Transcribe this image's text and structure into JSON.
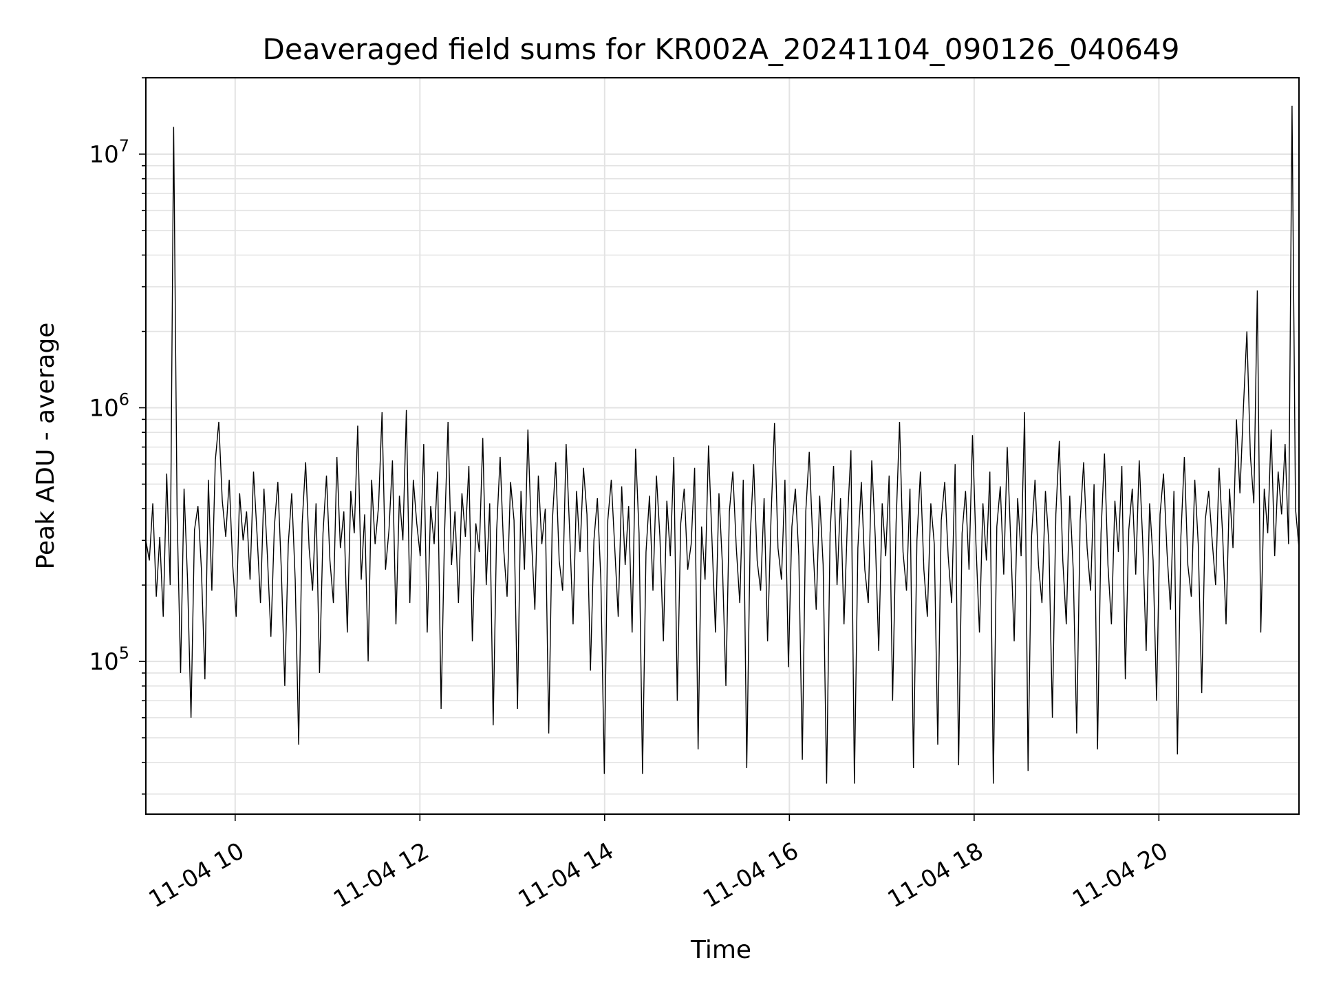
{
  "chart_data": {
    "type": "line",
    "title": "Deaveraged field sums for KR002A_20241104_090126_040649",
    "xlabel": "Time",
    "ylabel": "Peak ADU - average",
    "y_scale": "log",
    "ylim": [
      25000,
      20000000
    ],
    "xlim": [
      "2024-11-04 09:02",
      "2024-11-04 21:31"
    ],
    "grid": true,
    "line_color": "#000000",
    "x_tick_labels": [
      {
        "time": "2024-11-04 10:00",
        "label": "11-04 10"
      },
      {
        "time": "2024-11-04 12:00",
        "label": "11-04 12"
      },
      {
        "time": "2024-11-04 14:00",
        "label": "11-04 14"
      },
      {
        "time": "2024-11-04 16:00",
        "label": "11-04 16"
      },
      {
        "time": "2024-11-04 18:00",
        "label": "11-04 18"
      },
      {
        "time": "2024-11-04 20:00",
        "label": "11-04 20"
      }
    ],
    "y_tick_labels": [
      {
        "value": 100000,
        "base": "10",
        "exp": "5"
      },
      {
        "value": 1000000,
        "base": "10",
        "exp": "6"
      },
      {
        "value": 10000000,
        "base": "10",
        "exp": "7"
      }
    ],
    "series": [
      {
        "x_start": "2024-11-04 09:02",
        "x_end": "2024-11-04 21:31",
        "values": [
          300000,
          250000,
          420000,
          180000,
          310000,
          150000,
          550000,
          200000,
          12800000,
          380000,
          90000,
          480000,
          210000,
          60000,
          330000,
          410000,
          230000,
          85000,
          520000,
          190000,
          620000,
          880000,
          430000,
          310000,
          520000,
          240000,
          150000,
          460000,
          300000,
          390000,
          210000,
          560000,
          320000,
          170000,
          480000,
          260000,
          125000,
          340000,
          510000,
          230000,
          80000,
          290000,
          460000,
          210000,
          47000,
          350000,
          610000,
          280000,
          190000,
          420000,
          90000,
          320000,
          540000,
          250000,
          170000,
          640000,
          280000,
          390000,
          130000,
          470000,
          320000,
          850000,
          210000,
          380000,
          100000,
          520000,
          290000,
          410000,
          960000,
          230000,
          330000,
          620000,
          140000,
          450000,
          300000,
          980000,
          170000,
          520000,
          350000,
          260000,
          720000,
          130000,
          410000,
          290000,
          560000,
          65000,
          320000,
          880000,
          240000,
          390000,
          170000,
          460000,
          310000,
          590000,
          120000,
          350000,
          270000,
          760000,
          200000,
          420000,
          56000,
          330000,
          640000,
          280000,
          180000,
          510000,
          360000,
          65000,
          470000,
          230000,
          820000,
          310000,
          160000,
          540000,
          290000,
          400000,
          52000,
          350000,
          610000,
          250000,
          190000,
          720000,
          330000,
          140000,
          470000,
          270000,
          580000,
          380000,
          92000,
          300000,
          440000,
          210000,
          36000,
          360000,
          520000,
          280000,
          150000,
          490000,
          240000,
          410000,
          130000,
          690000,
          320000,
          36000,
          270000,
          450000,
          190000,
          540000,
          310000,
          120000,
          430000,
          260000,
          640000,
          70000,
          350000,
          480000,
          230000,
          290000,
          580000,
          45000,
          340000,
          210000,
          710000,
          300000,
          130000,
          460000,
          240000,
          80000,
          390000,
          560000,
          280000,
          170000,
          520000,
          38000,
          310000,
          600000,
          250000,
          190000,
          440000,
          120000,
          370000,
          870000,
          280000,
          210000,
          520000,
          95000,
          340000,
          480000,
          260000,
          41000,
          390000,
          670000,
          300000,
          160000,
          450000,
          240000,
          33000,
          320000,
          590000,
          200000,
          440000,
          140000,
          360000,
          680000,
          33000,
          280000,
          510000,
          230000,
          170000,
          620000,
          310000,
          110000,
          420000,
          260000,
          540000,
          70000,
          350000,
          880000,
          270000,
          190000,
          480000,
          38000,
          300000,
          560000,
          230000,
          150000,
          420000,
          290000,
          47000,
          360000,
          510000,
          260000,
          170000,
          600000,
          39000,
          320000,
          470000,
          230000,
          780000,
          290000,
          130000,
          420000,
          250000,
          560000,
          33000,
          340000,
          490000,
          220000,
          700000,
          300000,
          120000,
          440000,
          260000,
          960000,
          37000,
          310000,
          520000,
          240000,
          170000,
          470000,
          290000,
          60000,
          380000,
          740000,
          250000,
          140000,
          450000,
          230000,
          52000,
          360000,
          610000,
          280000,
          190000,
          500000,
          45000,
          320000,
          660000,
          240000,
          140000,
          430000,
          270000,
          590000,
          85000,
          330000,
          480000,
          220000,
          620000,
          300000,
          110000,
          420000,
          250000,
          70000,
          380000,
          550000,
          270000,
          160000,
          470000,
          43000,
          310000,
          640000,
          240000,
          180000,
          520000,
          290000,
          75000,
          360000,
          470000,
          300000,
          200000,
          580000,
          320000,
          140000,
          480000,
          280000,
          900000,
          460000,
          1000000,
          2000000,
          650000,
          420000,
          2900000,
          130000,
          480000,
          320000,
          820000,
          260000,
          560000,
          380000,
          720000,
          290000,
          15500000,
          400000,
          280000
        ]
      }
    ]
  }
}
